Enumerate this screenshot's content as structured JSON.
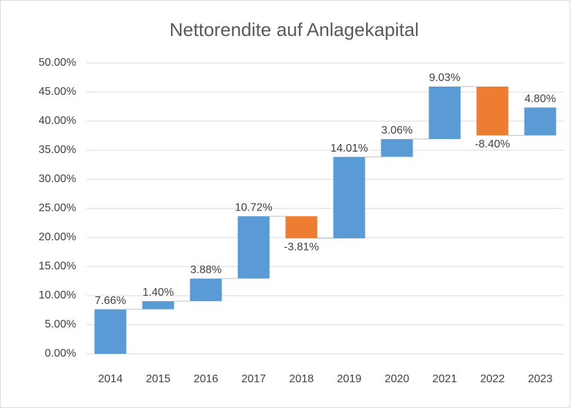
{
  "chart_data": {
    "type": "waterfall",
    "title": "Nettorendite auf Anlagekapital",
    "categories": [
      "2014",
      "2015",
      "2016",
      "2017",
      "2018",
      "2019",
      "2020",
      "2021",
      "2022",
      "2023"
    ],
    "values": [
      7.66,
      1.4,
      3.88,
      10.72,
      -3.81,
      14.01,
      3.06,
      9.03,
      -8.4,
      4.8
    ],
    "value_labels": [
      "7.66%",
      "1.40%",
      "3.88%",
      "10.72%",
      "-3.81%",
      "14.01%",
      "3.06%",
      "9.03%",
      "-8.40%",
      "4.80%"
    ],
    "increase_color": "#5b9bd5",
    "decrease_color": "#ed7d31",
    "ylim": [
      0,
      50
    ],
    "yticks": [
      {
        "value": 0,
        "label": "0.00%"
      },
      {
        "value": 5,
        "label": "5.00%"
      },
      {
        "value": 10,
        "label": "10.00%"
      },
      {
        "value": 15,
        "label": "15.00%"
      },
      {
        "value": 20,
        "label": "20.00%"
      },
      {
        "value": 25,
        "label": "25.00%"
      },
      {
        "value": 30,
        "label": "30.00%"
      },
      {
        "value": 35,
        "label": "35.00%"
      },
      {
        "value": 40,
        "label": "40.00%"
      },
      {
        "value": 45,
        "label": "45.00%"
      },
      {
        "value": 50,
        "label": "50.00%"
      }
    ],
    "grid": true
  }
}
